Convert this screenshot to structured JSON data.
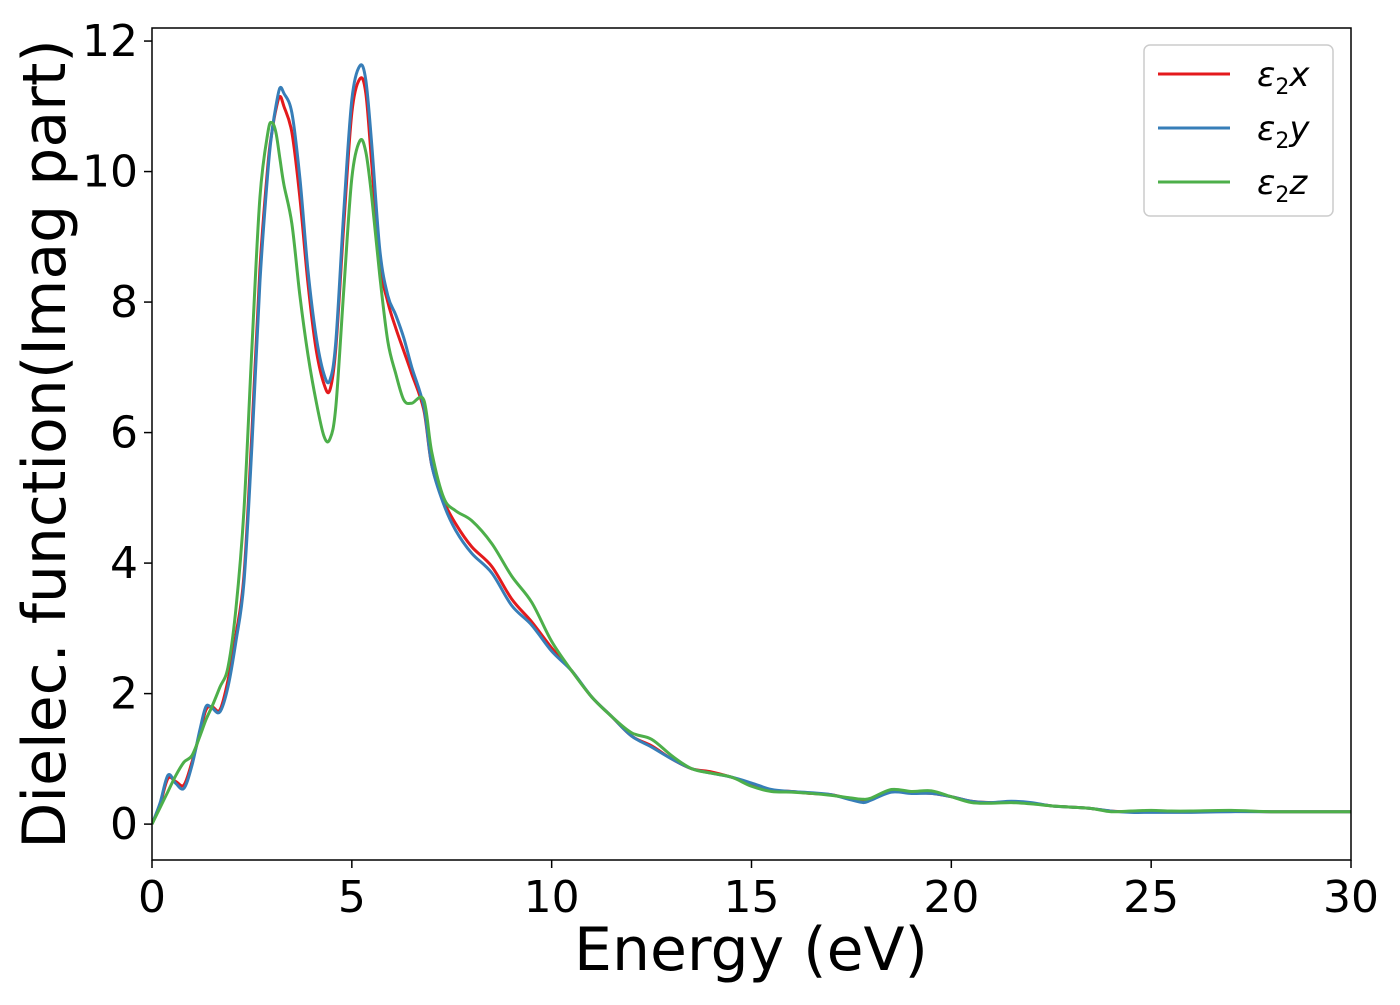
{
  "chart_data": {
    "type": "line",
    "xlabel": "Energy (eV)",
    "ylabel": "Dielec. function(Imag part)",
    "xlim": [
      0,
      30
    ],
    "ylim": [
      -0.55,
      12.2
    ],
    "xticks": [
      0,
      5,
      10,
      15,
      20,
      25,
      30
    ],
    "yticks": [
      0,
      2,
      4,
      6,
      8,
      10,
      12
    ],
    "grid": false,
    "legend_position": "top-right",
    "series": [
      {
        "name": "ε2x",
        "legend": {
          "prefix": "ε",
          "sub": "2",
          "suffix": "x"
        },
        "color": "#e41a1c",
        "x": [
          0,
          0.2,
          0.4,
          0.6,
          0.8,
          1.0,
          1.2,
          1.35,
          1.5,
          1.7,
          1.9,
          2.1,
          2.3,
          2.5,
          2.7,
          2.9,
          3.0,
          3.1,
          3.2,
          3.3,
          3.5,
          3.7,
          3.9,
          4.1,
          4.3,
          4.45,
          4.6,
          4.8,
          5.0,
          5.2,
          5.35,
          5.5,
          5.7,
          5.9,
          6.1,
          6.3,
          6.5,
          6.8,
          7.0,
          7.3,
          7.6,
          8.0,
          8.5,
          9.0,
          9.5,
          10.0,
          10.5,
          11.0,
          11.5,
          12.0,
          12.5,
          13.0,
          13.5,
          14.0,
          14.5,
          15.0,
          15.5,
          16.0,
          16.5,
          17.0,
          17.5,
          17.8,
          18.0,
          18.5,
          19.0,
          19.5,
          20.0,
          20.5,
          21.0,
          21.5,
          22.0,
          22.5,
          23.0,
          23.5,
          24.0,
          24.5,
          25.0,
          25.5,
          26.0,
          27.0,
          28.0,
          29.0,
          30.0
        ],
        "y": [
          0.0,
          0.3,
          0.7,
          0.65,
          0.6,
          0.95,
          1.4,
          1.75,
          1.8,
          1.75,
          2.2,
          2.9,
          3.8,
          6.0,
          8.5,
          10.1,
          10.6,
          10.95,
          11.15,
          11.0,
          10.6,
          9.6,
          8.3,
          7.3,
          6.75,
          6.65,
          7.3,
          9.2,
          10.9,
          11.42,
          11.2,
          10.1,
          8.6,
          8.0,
          7.6,
          7.25,
          6.9,
          6.35,
          5.5,
          4.95,
          4.6,
          4.25,
          3.95,
          3.45,
          3.1,
          2.7,
          2.35,
          1.95,
          1.65,
          1.35,
          1.2,
          1.0,
          0.85,
          0.8,
          0.72,
          0.62,
          0.52,
          0.5,
          0.47,
          0.45,
          0.38,
          0.35,
          0.38,
          0.5,
          0.48,
          0.47,
          0.42,
          0.35,
          0.33,
          0.34,
          0.32,
          0.28,
          0.26,
          0.24,
          0.2,
          0.19,
          0.2,
          0.19,
          0.19,
          0.2,
          0.19,
          0.19,
          0.19
        ]
      },
      {
        "name": "ε2y",
        "legend": {
          "prefix": "ε",
          "sub": "2",
          "suffix": "y"
        },
        "color": "#377eb8",
        "x": [
          0,
          0.2,
          0.4,
          0.6,
          0.8,
          1.0,
          1.2,
          1.35,
          1.5,
          1.7,
          1.9,
          2.1,
          2.3,
          2.5,
          2.7,
          2.9,
          3.0,
          3.1,
          3.2,
          3.3,
          3.5,
          3.7,
          3.9,
          4.1,
          4.3,
          4.45,
          4.6,
          4.8,
          5.0,
          5.2,
          5.35,
          5.5,
          5.7,
          5.9,
          6.1,
          6.3,
          6.5,
          6.8,
          7.0,
          7.3,
          7.6,
          8.0,
          8.5,
          9.0,
          9.5,
          10.0,
          10.5,
          11.0,
          11.5,
          12.0,
          12.5,
          13.0,
          13.5,
          14.0,
          14.5,
          15.0,
          15.5,
          16.0,
          16.5,
          17.0,
          17.5,
          17.8,
          18.0,
          18.5,
          19.0,
          19.5,
          20.0,
          20.5,
          21.0,
          21.5,
          22.0,
          22.5,
          23.0,
          23.5,
          24.0,
          24.5,
          25.0,
          25.5,
          26.0,
          27.0,
          28.0,
          29.0,
          30.0
        ],
        "y": [
          0.0,
          0.32,
          0.75,
          0.62,
          0.55,
          0.9,
          1.45,
          1.8,
          1.78,
          1.72,
          2.1,
          2.8,
          3.7,
          5.8,
          8.3,
          10.0,
          10.6,
          11.0,
          11.28,
          11.2,
          10.9,
          9.9,
          8.5,
          7.5,
          6.9,
          6.8,
          7.4,
          9.4,
          11.1,
          11.62,
          11.4,
          10.4,
          8.8,
          8.1,
          7.8,
          7.45,
          7.0,
          6.4,
          5.5,
          4.9,
          4.5,
          4.15,
          3.85,
          3.35,
          3.05,
          2.65,
          2.35,
          1.95,
          1.65,
          1.35,
          1.18,
          1.0,
          0.85,
          0.78,
          0.72,
          0.63,
          0.53,
          0.5,
          0.48,
          0.45,
          0.37,
          0.33,
          0.37,
          0.49,
          0.47,
          0.47,
          0.42,
          0.35,
          0.33,
          0.35,
          0.33,
          0.28,
          0.26,
          0.24,
          0.2,
          0.18,
          0.18,
          0.18,
          0.18,
          0.19,
          0.19,
          0.19,
          0.19
        ]
      },
      {
        "name": "ε2z",
        "legend": {
          "prefix": "ε",
          "sub": "2",
          "suffix": "z"
        },
        "color": "#4daf4a",
        "x": [
          0,
          0.2,
          0.4,
          0.6,
          0.8,
          1.0,
          1.2,
          1.35,
          1.5,
          1.7,
          1.9,
          2.1,
          2.3,
          2.5,
          2.7,
          2.9,
          3.0,
          3.1,
          3.2,
          3.3,
          3.5,
          3.7,
          3.9,
          4.1,
          4.3,
          4.45,
          4.6,
          4.8,
          5.0,
          5.2,
          5.35,
          5.5,
          5.7,
          5.9,
          6.1,
          6.3,
          6.5,
          6.8,
          7.0,
          7.3,
          7.6,
          8.0,
          8.5,
          9.0,
          9.5,
          10.0,
          10.5,
          11.0,
          11.5,
          12.0,
          12.5,
          13.0,
          13.5,
          14.0,
          14.5,
          15.0,
          15.5,
          16.0,
          16.5,
          17.0,
          17.5,
          17.8,
          18.0,
          18.5,
          19.0,
          19.5,
          20.0,
          20.5,
          21.0,
          21.5,
          22.0,
          22.5,
          23.0,
          23.5,
          24.0,
          24.5,
          25.0,
          25.5,
          26.0,
          27.0,
          28.0,
          29.0,
          30.0
        ],
        "y": [
          0.0,
          0.25,
          0.5,
          0.75,
          0.95,
          1.05,
          1.35,
          1.6,
          1.8,
          2.1,
          2.4,
          3.3,
          4.8,
          7.3,
          9.6,
          10.6,
          10.75,
          10.6,
          10.2,
          9.8,
          9.2,
          8.1,
          7.2,
          6.5,
          5.95,
          5.9,
          6.4,
          8.2,
          9.9,
          10.47,
          10.3,
          9.6,
          8.4,
          7.4,
          6.9,
          6.5,
          6.45,
          6.5,
          5.7,
          5.0,
          4.8,
          4.65,
          4.3,
          3.8,
          3.4,
          2.8,
          2.35,
          1.95,
          1.65,
          1.4,
          1.3,
          1.05,
          0.85,
          0.78,
          0.72,
          0.58,
          0.5,
          0.49,
          0.47,
          0.44,
          0.4,
          0.38,
          0.4,
          0.53,
          0.5,
          0.51,
          0.42,
          0.33,
          0.32,
          0.33,
          0.31,
          0.28,
          0.26,
          0.24,
          0.19,
          0.2,
          0.21,
          0.2,
          0.2,
          0.21,
          0.19,
          0.19,
          0.19
        ]
      }
    ]
  }
}
